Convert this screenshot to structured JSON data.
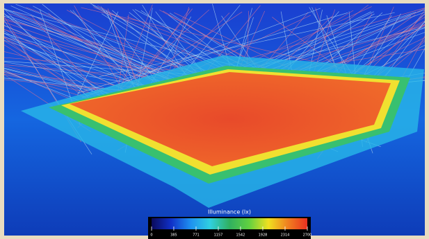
{
  "legend": {
    "title": "Illuminance (lx)",
    "range": [
      0,
      2700
    ],
    "ticks": [
      0,
      385,
      771,
      1157,
      1542,
      1928,
      2314,
      2700
    ],
    "colors": [
      "#0a0a5a",
      "#1030c8",
      "#1e90f0",
      "#30d0e0",
      "#30b060",
      "#60d040",
      "#f0e020",
      "#f08020",
      "#e83020"
    ]
  }
}
